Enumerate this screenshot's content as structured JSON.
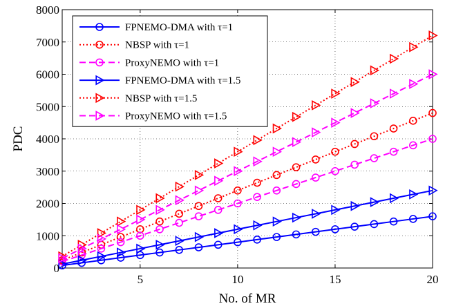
{
  "chart_data": {
    "type": "line",
    "title": "",
    "xlabel": "No. of MR",
    "ylabel": "PDC",
    "xlim": [
      1,
      20
    ],
    "ylim": [
      0,
      8000
    ],
    "xticks": [
      5,
      10,
      15,
      20
    ],
    "yticks": [
      0,
      1000,
      2000,
      3000,
      4000,
      5000,
      6000,
      7000,
      8000
    ],
    "grid": true,
    "legend_position": "top-left",
    "x": [
      1,
      2,
      3,
      4,
      5,
      6,
      7,
      8,
      9,
      10,
      11,
      12,
      13,
      14,
      15,
      16,
      17,
      18,
      19,
      20
    ],
    "series": [
      {
        "name": "FPNEMO-DMA with τ=1",
        "color": "#0000ff",
        "line_style": "solid",
        "marker": "circle",
        "values": [
          80,
          160,
          240,
          320,
          400,
          480,
          560,
          640,
          720,
          800,
          880,
          960,
          1040,
          1120,
          1200,
          1280,
          1360,
          1440,
          1520,
          1600
        ]
      },
      {
        "name": "NBSP with τ=1",
        "color": "#ff0000",
        "line_style": "dotted",
        "marker": "circle",
        "values": [
          240,
          480,
          720,
          960,
          1200,
          1440,
          1680,
          1920,
          2160,
          2400,
          2640,
          2880,
          3120,
          3360,
          3600,
          3840,
          4080,
          4320,
          4560,
          4800
        ]
      },
      {
        "name": "ProxyNEMO with τ=1",
        "color": "#ff00ff",
        "line_style": "dashed",
        "marker": "circle",
        "values": [
          200,
          400,
          600,
          800,
          1000,
          1200,
          1400,
          1600,
          1800,
          2000,
          2200,
          2400,
          2600,
          2800,
          3000,
          3200,
          3400,
          3600,
          3800,
          4000
        ]
      },
      {
        "name": "FPNEMO-DMA with τ=1.5",
        "color": "#0000ff",
        "line_style": "solid",
        "marker": "triangle-right",
        "values": [
          120,
          240,
          360,
          480,
          600,
          720,
          840,
          960,
          1080,
          1200,
          1320,
          1440,
          1560,
          1680,
          1800,
          1920,
          2040,
          2160,
          2280,
          2400
        ]
      },
      {
        "name": "NBSP with τ=1.5",
        "color": "#ff0000",
        "line_style": "dotted",
        "marker": "triangle-right",
        "values": [
          360,
          720,
          1080,
          1440,
          1800,
          2160,
          2520,
          2880,
          3240,
          3600,
          3960,
          4320,
          4680,
          5040,
          5400,
          5760,
          6120,
          6480,
          6840,
          7200
        ]
      },
      {
        "name": "ProxyNEMO with τ=1.5",
        "color": "#ff00ff",
        "line_style": "dashed",
        "marker": "triangle-right",
        "values": [
          300,
          600,
          900,
          1200,
          1500,
          1800,
          2100,
          2400,
          2700,
          3000,
          3300,
          3600,
          3900,
          4200,
          4500,
          4800,
          5100,
          5400,
          5700,
          6000
        ]
      }
    ]
  }
}
